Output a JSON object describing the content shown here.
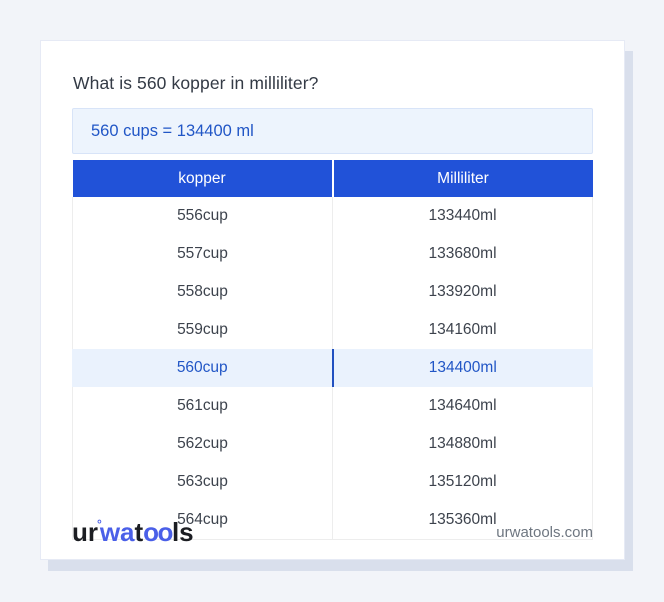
{
  "page": {
    "question_title": "What is 560 kopper in milliliter?"
  },
  "answer_box": {
    "text": "560 cups = 134400 ml"
  },
  "table": {
    "headers": [
      "kopper",
      "Milliliter"
    ],
    "rows": [
      {
        "kopper": "556cup",
        "milliliter": "133440ml",
        "highlight": false
      },
      {
        "kopper": "557cup",
        "milliliter": "133680ml",
        "highlight": false
      },
      {
        "kopper": "558cup",
        "milliliter": "133920ml",
        "highlight": false
      },
      {
        "kopper": "559cup",
        "milliliter": "134160ml",
        "highlight": false
      },
      {
        "kopper": "560cup",
        "milliliter": "134400ml",
        "highlight": true
      },
      {
        "kopper": "561cup",
        "milliliter": "134640ml",
        "highlight": false
      },
      {
        "kopper": "562cup",
        "milliliter": "134880ml",
        "highlight": false
      },
      {
        "kopper": "563cup",
        "milliliter": "135120ml",
        "highlight": false
      },
      {
        "kopper": "564cup",
        "milliliter": "135360ml",
        "highlight": false
      }
    ]
  },
  "footer": {
    "logo_parts": {
      "p1": "ur",
      "ring": "°",
      "p2": "wa",
      "p3": "t",
      "p4": "oo",
      "p5": "ls"
    },
    "site_url": "urwatools.com"
  },
  "colors": {
    "page_background": "#f2f4f9",
    "card_background": "#ffffff",
    "card_shadow": "#d9dfec",
    "header_blue": "#2152d8",
    "answer_box_background": "#edf4fd",
    "answer_box_border": "#d8e4f8",
    "accent_text_blue": "#2156c6",
    "highlight_row_background": "#eaf2fd",
    "highlight_divider_blue": "#2150c0",
    "row_text": "#3d434d",
    "title_text": "#333a45",
    "footer_url_text": "#6e7680",
    "logo_blue": "#4a5fe8",
    "logo_dark": "#1b1d22"
  }
}
